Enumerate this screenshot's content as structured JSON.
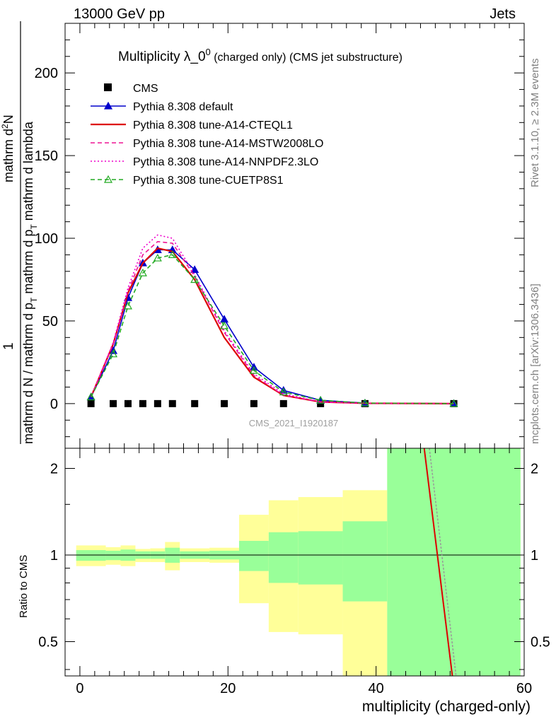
{
  "header": {
    "energy": "13000 GeV pp",
    "category": "Jets",
    "rivet": "Rivet 3.1.10, ≥ 2.3M events",
    "mcplots": "mcplots.cern.ch [arXiv:1306.3436]",
    "analysis": "CMS_2021_I1920187"
  },
  "chart_data": [
    {
      "type": "line",
      "title_main": "Multiplicity λ_0",
      "title_sup": "0",
      "title_rest": " (charged only) (CMS jet substructure)",
      "ylabel_num": "mathrm d",
      "ylabel_num_sup": "2",
      "ylabel_num_n": "N",
      "ylabel_den": "mathrm d p",
      "ylabel_den_sub": "T",
      "ylabel_den2": " mathrm d lambda",
      "ylabel_prefix": "1",
      "ylabel_prefix_den": "mathrm d N / mathrm d p",
      "ylabel_prefix_den_sub": "T",
      "ylabel_prefix_den2": "mathrm d p",
      "ylim": [
        -27,
        230
      ],
      "xlim": [
        -2,
        60
      ],
      "yticks": [
        0,
        50,
        100,
        150,
        200
      ],
      "ytick_labels": [
        "0",
        "50",
        "100",
        "150",
        "200"
      ],
      "series": [
        {
          "name": "CMS",
          "color": "#000000",
          "style": "marker-square",
          "x": [
            1.5,
            4.5,
            6.5,
            8.5,
            10.5,
            12.5,
            15.5,
            19.5,
            23.5,
            27.5,
            32.5,
            38.5,
            50.5
          ],
          "y": [
            0,
            0,
            0,
            0,
            0,
            0,
            0,
            0,
            0,
            0,
            0,
            0,
            0
          ]
        },
        {
          "name": "Pythia 8.308 default",
          "color": "#0000cc",
          "style": "solid-triangle",
          "x": [
            1.5,
            4.5,
            6.5,
            8.5,
            10.5,
            12.5,
            15.5,
            19.5,
            23.5,
            27.5,
            32.5,
            38.5,
            50.5
          ],
          "y": [
            4,
            32,
            64,
            85,
            93,
            93,
            81,
            51,
            22,
            8,
            2,
            0.3,
            0
          ]
        },
        {
          "name": "Pythia 8.308 tune-A14-CTEQL1",
          "color": "#dd0000",
          "style": "solid",
          "x": [
            1.5,
            4.5,
            6.5,
            8.5,
            10.5,
            12.5,
            15.5,
            19.5,
            23.5,
            27.5,
            32.5,
            38.5,
            50.5
          ],
          "y": [
            4,
            36,
            67,
            85,
            94,
            92,
            75,
            40,
            16,
            5,
            1,
            0.2,
            0
          ]
        },
        {
          "name": "Pythia 8.308 tune-A14-MSTW2008LO",
          "color": "#ee1493",
          "style": "dashed",
          "x": [
            1.5,
            4.5,
            6.5,
            8.5,
            10.5,
            12.5,
            15.5,
            19.5,
            23.5,
            27.5,
            32.5,
            38.5,
            50.5
          ],
          "y": [
            4,
            36,
            68,
            90,
            98,
            97,
            77,
            43,
            17,
            5,
            1,
            0.2,
            0
          ]
        },
        {
          "name": "Pythia 8.308 tune-A14-NNPDF2.3LO",
          "color": "#ee00cc",
          "style": "dotted",
          "x": [
            1.5,
            4.5,
            6.5,
            8.5,
            10.5,
            12.5,
            15.5,
            19.5,
            23.5,
            27.5,
            32.5,
            38.5,
            50.5
          ],
          "y": [
            4,
            37,
            70,
            94,
            102,
            100,
            78,
            44,
            18,
            6,
            1,
            0.2,
            0
          ]
        },
        {
          "name": "Pythia 8.308 tune-CUETP8S1",
          "color": "#22aa22",
          "style": "dashed-open-triangle",
          "x": [
            1.5,
            4.5,
            6.5,
            8.5,
            10.5,
            12.5,
            15.5,
            19.5,
            23.5,
            27.5,
            32.5,
            38.5,
            50.5
          ],
          "y": [
            4,
            30,
            59,
            79,
            88,
            90,
            75,
            47,
            20,
            7,
            2,
            0.3,
            0
          ]
        }
      ]
    },
    {
      "type": "ratio",
      "ylabel": "Ratio to CMS",
      "xlabel": "multiplicity (charged-only)",
      "ylim": [
        0.38,
        2.35
      ],
      "xlim": [
        -2,
        60
      ],
      "yticks": [
        0.5,
        1,
        2
      ],
      "ytick_labels": [
        "0.5",
        "1",
        "2"
      ],
      "xticks": [
        0,
        20,
        40,
        60
      ],
      "xtick_labels": [
        "0",
        "20",
        "40",
        "60"
      ],
      "bands": [
        {
          "x0": -0.5,
          "x1": 3.5,
          "yellow": [
            0.915,
            1.08
          ],
          "green": [
            0.955,
            1.04
          ]
        },
        {
          "x0": 3.5,
          "x1": 5.5,
          "yellow": [
            0.925,
            1.065
          ],
          "green": [
            0.96,
            1.035
          ]
        },
        {
          "x0": 5.5,
          "x1": 7.5,
          "yellow": [
            0.915,
            1.08
          ],
          "green": [
            0.955,
            1.045
          ]
        },
        {
          "x0": 7.5,
          "x1": 9.5,
          "yellow": [
            0.945,
            1.05
          ],
          "green": [
            0.97,
            1.03
          ]
        },
        {
          "x0": 9.5,
          "x1": 11.5,
          "yellow": [
            0.945,
            1.055
          ],
          "green": [
            0.97,
            1.03
          ]
        },
        {
          "x0": 11.5,
          "x1": 13.5,
          "yellow": [
            0.885,
            1.11
          ],
          "green": [
            0.94,
            1.06
          ]
        },
        {
          "x0": 13.5,
          "x1": 17.5,
          "yellow": [
            0.945,
            1.055
          ],
          "green": [
            0.97,
            1.03
          ]
        },
        {
          "x0": 17.5,
          "x1": 21.5,
          "yellow": [
            0.94,
            1.06
          ],
          "green": [
            0.965,
            1.035
          ]
        },
        {
          "x0": 21.5,
          "x1": 25.5,
          "yellow": [
            0.68,
            1.38
          ],
          "green": [
            0.88,
            1.12
          ]
        },
        {
          "x0": 25.5,
          "x1": 29.5,
          "yellow": [
            0.54,
            1.55
          ],
          "green": [
            0.8,
            1.2
          ]
        },
        {
          "x0": 29.5,
          "x1": 35.5,
          "yellow": [
            0.53,
            1.59
          ],
          "green": [
            0.79,
            1.21
          ]
        },
        {
          "x0": 35.5,
          "x1": 41.5,
          "yellow": [
            0.38,
            1.68
          ],
          "green": [
            0.69,
            1.31
          ]
        },
        {
          "x0": 41.5,
          "x1": 59.5,
          "yellow": [
            0.38,
            2.35
          ],
          "green": [
            0.38,
            2.35
          ]
        }
      ],
      "ratio_lines": [
        {
          "name": "Pythia 8.308 tune-A14-CTEQL1",
          "color": "#dd0000",
          "x": [
            46.5,
            50.3
          ],
          "y": [
            2.35,
            0.38
          ]
        },
        {
          "name": "Pythia 8.308 tune-CUETP8S1",
          "color": "#999999",
          "x": [
            47.2,
            50.8
          ],
          "y": [
            2.35,
            0.38
          ]
        }
      ]
    }
  ]
}
